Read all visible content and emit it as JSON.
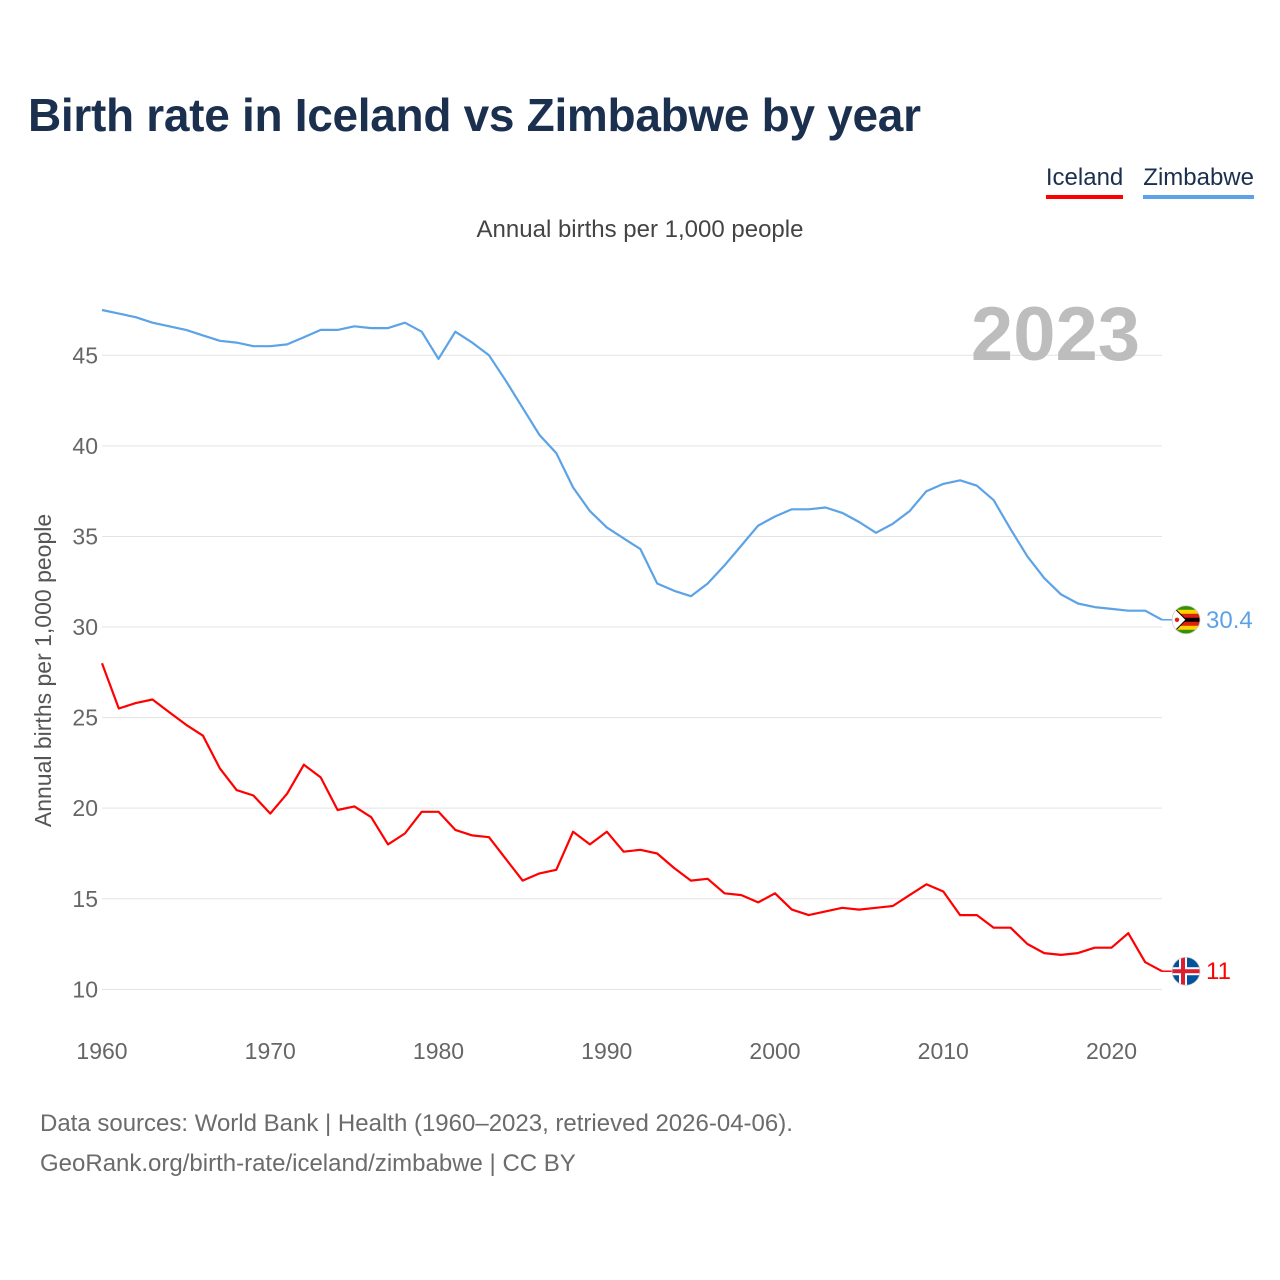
{
  "title": "Birth rate in Iceland vs Zimbabwe by year",
  "legend": [
    {
      "label": "Iceland",
      "color": "#ff0000"
    },
    {
      "label": "Zimbabwe",
      "color": "#5ba3e6"
    }
  ],
  "source_line1": "Data sources: World Bank | Health (1960–2023, retrieved 2026-04-06).",
  "source_line2": "GeoRank.org/birth-rate/iceland/zimbabwe | CC BY",
  "chart_data": {
    "type": "line",
    "title": "Birth rate in Iceland vs Zimbabwe by year",
    "subtitle": "Annual births per 1,000 people",
    "ylabel": "Annual births per 1,000 people",
    "xlabel": "",
    "year_label": "2023",
    "xlim": [
      1960,
      2023
    ],
    "ylim": [
      7.7,
      47.5
    ],
    "yticks": [
      10,
      15,
      20,
      25,
      30,
      35,
      40,
      45
    ],
    "xticks": [
      1960,
      1970,
      1980,
      1990,
      2000,
      2010,
      2020
    ],
    "grid": true,
    "x": [
      1960,
      1961,
      1962,
      1963,
      1964,
      1965,
      1966,
      1967,
      1968,
      1969,
      1970,
      1971,
      1972,
      1973,
      1974,
      1975,
      1976,
      1977,
      1978,
      1979,
      1980,
      1981,
      1982,
      1983,
      1984,
      1985,
      1986,
      1987,
      1988,
      1989,
      1990,
      1991,
      1992,
      1993,
      1994,
      1995,
      1996,
      1997,
      1998,
      1999,
      2000,
      2001,
      2002,
      2003,
      2004,
      2005,
      2006,
      2007,
      2008,
      2009,
      2010,
      2011,
      2012,
      2013,
      2014,
      2015,
      2016,
      2017,
      2018,
      2019,
      2020,
      2021,
      2022,
      2023
    ],
    "series": [
      {
        "name": "Iceland",
        "color": "#ff0000",
        "end_label": "11",
        "flag_icon": "iceland-flag-icon",
        "values": [
          28.0,
          25.5,
          25.8,
          26.0,
          25.3,
          24.6,
          24.0,
          22.2,
          21.0,
          20.7,
          19.7,
          20.8,
          22.4,
          21.7,
          19.9,
          20.1,
          19.5,
          18.0,
          18.6,
          19.8,
          19.8,
          18.8,
          18.5,
          18.4,
          17.2,
          16.0,
          16.4,
          16.6,
          18.7,
          18.0,
          18.7,
          17.6,
          17.7,
          17.5,
          16.7,
          16.0,
          16.1,
          15.3,
          15.2,
          14.8,
          15.3,
          14.4,
          14.1,
          14.3,
          14.5,
          14.4,
          14.5,
          14.6,
          15.2,
          15.8,
          15.4,
          14.1,
          14.1,
          13.4,
          13.4,
          12.5,
          12.0,
          11.9,
          12.0,
          12.3,
          12.3,
          13.1,
          11.5,
          11.0
        ]
      },
      {
        "name": "Zimbabwe",
        "color": "#5ba3e6",
        "end_label": "30.4",
        "flag_icon": "zimbabwe-flag-icon",
        "values": [
          47.5,
          47.3,
          47.1,
          46.8,
          46.6,
          46.4,
          46.1,
          45.8,
          45.7,
          45.5,
          45.5,
          45.6,
          46.0,
          46.4,
          46.4,
          46.6,
          46.5,
          46.5,
          46.8,
          46.3,
          44.8,
          46.3,
          45.7,
          45.0,
          43.6,
          42.1,
          40.6,
          39.6,
          37.7,
          36.4,
          35.5,
          34.9,
          34.3,
          32.4,
          32.0,
          31.7,
          32.4,
          33.4,
          34.5,
          35.6,
          36.1,
          36.5,
          36.5,
          36.6,
          36.3,
          35.8,
          35.2,
          35.7,
          36.4,
          37.5,
          37.9,
          38.1,
          37.8,
          37.0,
          35.4,
          33.9,
          32.7,
          31.8,
          31.3,
          31.1,
          31.0,
          30.9,
          30.9,
          30.4
        ]
      }
    ]
  }
}
